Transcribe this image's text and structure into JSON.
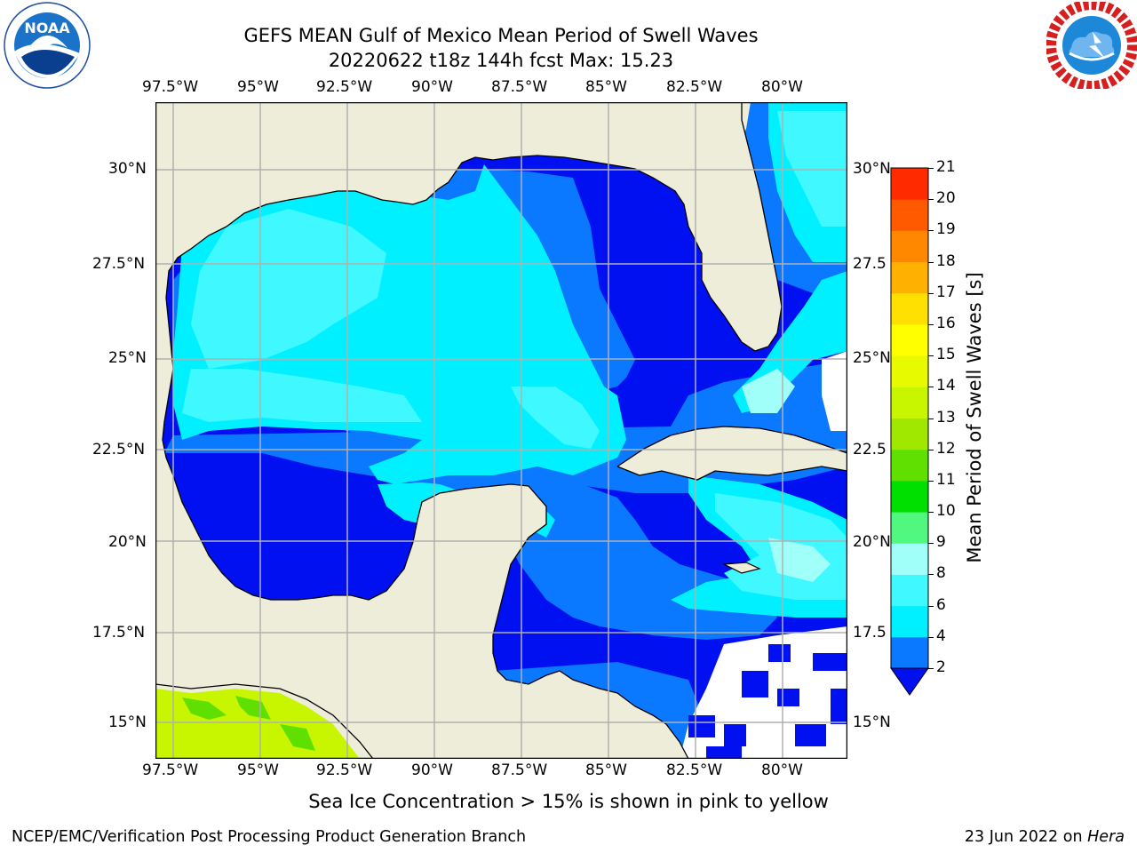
{
  "header": {
    "title_line1": "GEFS MEAN Gulf of Mexico Mean Period of Swell Waves",
    "title_line2": "20220622 t18z 144h fcst   Max: 15.23"
  },
  "logos": {
    "noaa_text": "NOAA",
    "noaa_ring": "NATIONAL OCEANIC AND ATMOSPHERIC ADMINISTRATION · U.S. DEPARTMENT OF COMMERCE",
    "nws_ring": "NATIONAL WEATHER SERVICE"
  },
  "map": {
    "lon_labels": [
      "97.5°W",
      "95°W",
      "92.5°W",
      "90°W",
      "87.5°W",
      "85°W",
      "82.5°W",
      "80°W"
    ],
    "lat_labels_left": [
      "30°N",
      "27.5°N",
      "25°N",
      "22.5°N",
      "20°N",
      "17.5°N",
      "15°N"
    ],
    "lat_labels_right": [
      "30°N",
      "27.5",
      "25°N",
      "22.5",
      "20°N",
      "17.5",
      "15°N"
    ],
    "colors": {
      "land": "#eeedda",
      "dark_blue": "#0010f0",
      "mid_blue": "#0a78ff",
      "cyan": "#00f0ff",
      "light_cyan": "#40f8ff",
      "pale_cyan": "#a0fff8",
      "yellow_green": "#c8f500",
      "green": "#60e000",
      "grid": "#b0b0b0"
    }
  },
  "colorbar": {
    "label": "Mean Period of Swell Waves [s]",
    "ticks": [
      "2",
      "4",
      "6",
      "8",
      "9",
      "10",
      "11",
      "12",
      "13",
      "14",
      "15",
      "16",
      "17",
      "18",
      "19",
      "20",
      "21"
    ],
    "colors": [
      "#0a78ff",
      "#00f0ff",
      "#40f8ff",
      "#a0fff8",
      "#50f880",
      "#00e000",
      "#60e000",
      "#a0e800",
      "#c8f500",
      "#e8fa00",
      "#ffff00",
      "#ffe000",
      "#ffb000",
      "#ff8800",
      "#ff5a00",
      "#ff2a00"
    ],
    "under_color": "#0010f0"
  },
  "note": "Sea Ice Concentration > 15% is shown in pink to yellow",
  "footer": {
    "left": "NCEP/EMC/Verification Post Processing Product Generation Branch",
    "date": "23 Jun 2022 on",
    "machine": "Hera"
  }
}
